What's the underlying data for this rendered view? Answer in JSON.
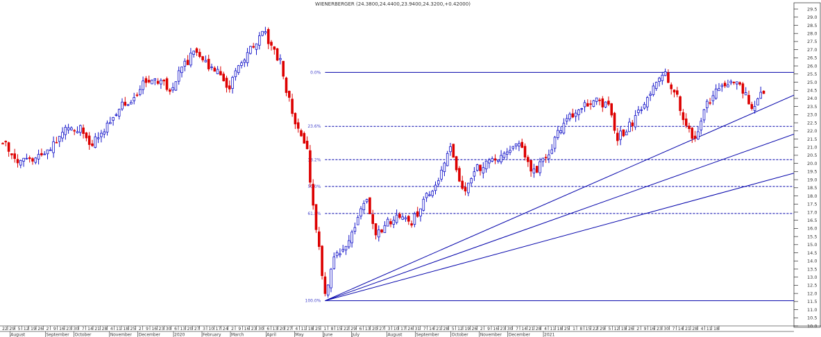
{
  "chart_data": {
    "type": "candlestick",
    "title": "WIENERBERGER (24.3800,24.4400,23.9400,24.3200,+0.42000)",
    "ylim": [
      10.0,
      29.8
    ],
    "yticks": [
      10.0,
      10.5,
      11.0,
      11.5,
      12.0,
      12.5,
      13.0,
      13.5,
      14.0,
      14.5,
      15.0,
      15.5,
      16.0,
      16.5,
      17.0,
      17.5,
      18.0,
      18.5,
      19.0,
      19.5,
      20.0,
      20.5,
      21.0,
      21.5,
      22.0,
      22.5,
      23.0,
      23.5,
      24.0,
      24.5,
      25.0,
      25.5,
      26.0,
      26.5,
      27.0,
      27.5,
      28.0,
      28.5,
      29.0,
      29.5
    ],
    "colors": {
      "up": "#1010c8",
      "down": "#dd0000",
      "line": "#0000aa",
      "grid": "#b8b8b8"
    },
    "day_ticks": [
      "22",
      "29",
      "5",
      "12",
      "19",
      "26",
      "2",
      "9",
      "16",
      "23",
      "30",
      "7",
      "14",
      "21",
      "28",
      "4",
      "11",
      "18",
      "25",
      "2",
      "9",
      "16",
      "23",
      "30",
      "6",
      "13",
      "20",
      "27",
      "3",
      "10",
      "17",
      "24",
      "2",
      "9",
      "16",
      "23",
      "30",
      "6",
      "13",
      "20",
      "27",
      "4",
      "11",
      "18",
      "25",
      "1",
      "8",
      "15",
      "22",
      "29",
      "6",
      "13",
      "20",
      "27",
      "3",
      "10",
      "17",
      "24",
      "31",
      "7",
      "14",
      "21",
      "28",
      "5",
      "12",
      "19",
      "26",
      "2",
      "9",
      "16",
      "23",
      "30",
      "7",
      "14",
      "21",
      "28",
      "4",
      "11",
      "18",
      "25",
      "1",
      "8",
      "15",
      "22",
      "29",
      "5",
      "12",
      "19",
      "26",
      "2",
      "9",
      "16",
      "23",
      "30",
      "7",
      "14",
      "21",
      "28",
      "4",
      "11",
      "18"
    ],
    "month_labels": [
      {
        "label": "August",
        "tick": 1
      },
      {
        "label": "September",
        "tick": 6
      },
      {
        "label": "October",
        "tick": 10
      },
      {
        "label": "November",
        "tick": 15
      },
      {
        "label": "December",
        "tick": 19
      },
      {
        "label": "2020",
        "tick": 24
      },
      {
        "label": "February",
        "tick": 28
      },
      {
        "label": "March",
        "tick": 32
      },
      {
        "label": "April",
        "tick": 37
      },
      {
        "label": "May",
        "tick": 41
      },
      {
        "label": "June",
        "tick": 45
      },
      {
        "label": "July",
        "tick": 49
      },
      {
        "label": "August",
        "tick": 54
      },
      {
        "label": "September",
        "tick": 58
      },
      {
        "label": "October",
        "tick": 63
      },
      {
        "label": "November",
        "tick": 67
      },
      {
        "label": "December",
        "tick": 71
      },
      {
        "label": "2021",
        "tick": 76
      }
    ],
    "anchors": [
      {
        "bar": 0,
        "price": 21.5
      },
      {
        "bar": 4,
        "price": 20.2
      },
      {
        "bar": 8,
        "price": 20.1
      },
      {
        "bar": 13,
        "price": 20.6
      },
      {
        "bar": 17,
        "price": 21.2
      },
      {
        "bar": 22,
        "price": 22.4
      },
      {
        "bar": 26,
        "price": 22.1
      },
      {
        "bar": 30,
        "price": 21.2
      },
      {
        "bar": 34,
        "price": 22.0
      },
      {
        "bar": 38,
        "price": 23.2
      },
      {
        "bar": 43,
        "price": 24.0
      },
      {
        "bar": 47,
        "price": 24.9
      },
      {
        "bar": 51,
        "price": 25.3
      },
      {
        "bar": 56,
        "price": 24.6
      },
      {
        "bar": 60,
        "price": 25.8
      },
      {
        "bar": 64,
        "price": 26.8
      },
      {
        "bar": 67,
        "price": 26.2
      },
      {
        "bar": 71,
        "price": 25.8
      },
      {
        "bar": 76,
        "price": 24.7
      },
      {
        "bar": 80,
        "price": 26.3
      },
      {
        "bar": 84,
        "price": 27.3
      },
      {
        "bar": 87,
        "price": 28.2
      },
      {
        "bar": 90,
        "price": 27.2
      },
      {
        "bar": 93,
        "price": 26.3
      },
      {
        "bar": 95,
        "price": 24.6
      },
      {
        "bar": 97,
        "price": 23.0
      },
      {
        "bar": 100,
        "price": 21.9
      },
      {
        "bar": 102,
        "price": 20.7
      },
      {
        "bar": 104,
        "price": 17.2
      },
      {
        "bar": 106,
        "price": 14.7
      },
      {
        "bar": 108,
        "price": 11.8
      },
      {
        "bar": 111,
        "price": 14.2
      },
      {
        "bar": 115,
        "price": 14.8
      },
      {
        "bar": 119,
        "price": 16.6
      },
      {
        "bar": 122,
        "price": 17.9
      },
      {
        "bar": 125,
        "price": 15.4
      },
      {
        "bar": 129,
        "price": 16.4
      },
      {
        "bar": 133,
        "price": 16.9
      },
      {
        "bar": 137,
        "price": 16.3
      },
      {
        "bar": 141,
        "price": 17.7
      },
      {
        "bar": 146,
        "price": 18.8
      },
      {
        "bar": 150,
        "price": 21.3
      },
      {
        "bar": 154,
        "price": 18.2
      },
      {
        "bar": 158,
        "price": 19.6
      },
      {
        "bar": 163,
        "price": 20.1
      },
      {
        "bar": 168,
        "price": 20.4
      },
      {
        "bar": 173,
        "price": 21.1
      },
      {
        "bar": 178,
        "price": 19.4
      },
      {
        "bar": 183,
        "price": 20.6
      },
      {
        "bar": 188,
        "price": 22.6
      },
      {
        "bar": 193,
        "price": 23.4
      },
      {
        "bar": 198,
        "price": 23.8
      },
      {
        "bar": 203,
        "price": 23.6
      },
      {
        "bar": 206,
        "price": 21.6
      },
      {
        "bar": 210,
        "price": 22.3
      },
      {
        "bar": 214,
        "price": 23.4
      },
      {
        "bar": 219,
        "price": 24.8
      },
      {
        "bar": 222,
        "price": 25.4
      },
      {
        "bar": 226,
        "price": 24.1
      },
      {
        "bar": 229,
        "price": 22.1
      },
      {
        "bar": 232,
        "price": 21.4
      },
      {
        "bar": 236,
        "price": 23.6
      },
      {
        "bar": 240,
        "price": 24.6
      },
      {
        "bar": 244,
        "price": 25.1
      },
      {
        "bar": 248,
        "price": 24.5
      },
      {
        "bar": 251,
        "price": 23.6
      },
      {
        "bar": 255,
        "price": 24.3
      }
    ],
    "fibonacci": {
      "high": 25.6,
      "low": 11.55,
      "levels": [
        {
          "label": "0.0%",
          "price": 25.6
        },
        {
          "label": "23.6%",
          "price": 22.28
        },
        {
          "label": "38.2%",
          "price": 20.23
        },
        {
          "label": "50.0%",
          "price": 18.58
        },
        {
          "label": "61.8%",
          "price": 16.92
        },
        {
          "label": "100.0%",
          "price": 11.55
        }
      ]
    },
    "fan_lines": [
      {
        "name": "fan-1",
        "from": {
          "bar": 108,
          "price": 11.55
        },
        "to_edge_price": 24.2
      },
      {
        "name": "fan-2",
        "from": {
          "bar": 108,
          "price": 11.55
        },
        "to_edge_price": 21.8
      },
      {
        "name": "fan-3",
        "from": {
          "bar": 108,
          "price": 11.55
        },
        "to_edge_price": 19.4
      }
    ]
  }
}
